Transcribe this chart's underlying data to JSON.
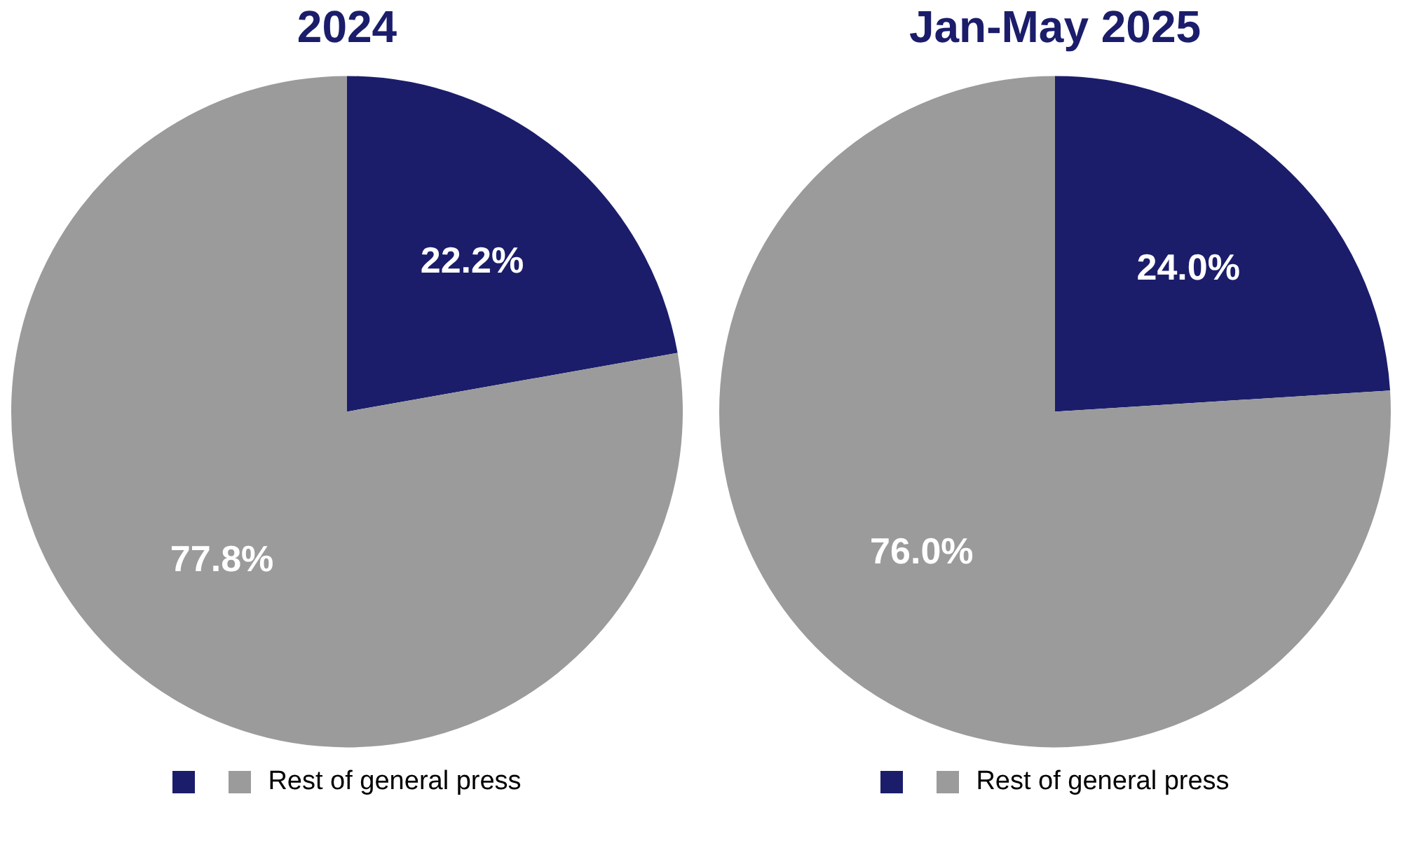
{
  "chart_data": [
    {
      "type": "pie",
      "title": "2024",
      "categories": [
        null,
        "Rest of general press"
      ],
      "values": [
        22.2,
        77.8
      ],
      "value_labels": [
        "22.2%",
        "77.8%"
      ],
      "colors": [
        "#1b1d6b",
        "#9b9b9b"
      ],
      "legend": "bottom"
    },
    {
      "type": "pie",
      "title": "Jan-May 2025",
      "categories": [
        null,
        "Rest of general press"
      ],
      "values": [
        24.0,
        76.0
      ],
      "value_labels": [
        "24.0%",
        "76.0%"
      ],
      "colors": [
        "#1b1d6b",
        "#9b9b9b"
      ],
      "legend": "bottom"
    }
  ]
}
